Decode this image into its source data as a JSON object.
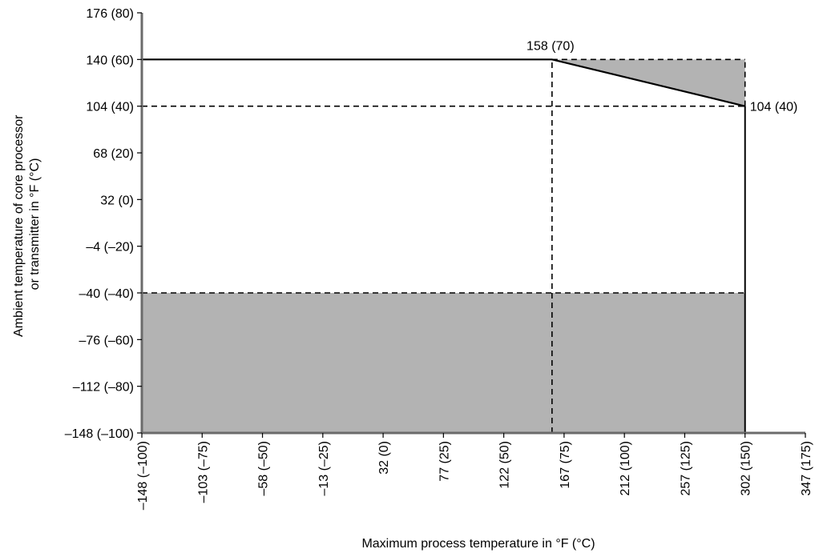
{
  "chart_data": {
    "type": "area",
    "title": "",
    "xlabel": "Maximum process temperature in °F (°C)",
    "ylabel_lines": [
      "Ambient temperature of core processor",
      "or transmitter in °F (°C)"
    ],
    "x_unit": "°C",
    "y_unit": "°C",
    "xlim": [
      -100,
      175
    ],
    "ylim": [
      -100,
      80
    ],
    "grid": false,
    "legend": "none",
    "x_ticks": [
      {
        "value": -100,
        "label": "–148 (–100)"
      },
      {
        "value": -75,
        "label": "–103 (–75)"
      },
      {
        "value": -50,
        "label": "–58 (–50)"
      },
      {
        "value": -25,
        "label": "–13 (–25)"
      },
      {
        "value": 0,
        "label": "32 (0)"
      },
      {
        "value": 25,
        "label": "77 (25)"
      },
      {
        "value": 50,
        "label": "122 (50)"
      },
      {
        "value": 75,
        "label": "167 (75)"
      },
      {
        "value": 100,
        "label": "212 (100)"
      },
      {
        "value": 125,
        "label": "257 (125)"
      },
      {
        "value": 150,
        "label": "302 (150)"
      },
      {
        "value": 175,
        "label": "347 (175)"
      }
    ],
    "y_ticks": [
      {
        "value": -100,
        "label": "–148 (–100)"
      },
      {
        "value": -80,
        "label": "–112 (–80)"
      },
      {
        "value": -60,
        "label": "–76 (–60)"
      },
      {
        "value": -40,
        "label": "–40 (–40)"
      },
      {
        "value": -20,
        "label": "–4 (–20)"
      },
      {
        "value": 0,
        "label": "32 (0)"
      },
      {
        "value": 20,
        "label": "68 (20)"
      },
      {
        "value": 40,
        "label": "104 (40)"
      },
      {
        "value": 60,
        "label": "140 (60)"
      },
      {
        "value": 80,
        "label": "176 (80)"
      }
    ],
    "boundary_line": [
      {
        "x": -100,
        "y": 60
      },
      {
        "x": 70,
        "y": 60
      },
      {
        "x": 150,
        "y": 40
      }
    ],
    "shaded_regions": [
      {
        "points": [
          [
            -100,
            -100
          ],
          [
            150,
            -100
          ],
          [
            150,
            -40
          ],
          [
            -100,
            -40
          ]
        ],
        "color": "#b3b3b3"
      },
      {
        "points": [
          [
            70,
            60
          ],
          [
            150,
            60
          ],
          [
            150,
            40
          ]
        ],
        "color": "#b3b3b3"
      }
    ],
    "dashed_lines": [
      {
        "x1": -100,
        "y1": 40,
        "x2": 150,
        "y2": 40
      },
      {
        "x1": -100,
        "y1": -40,
        "x2": 150,
        "y2": -40
      },
      {
        "x1": 70,
        "y1": 60,
        "x2": 150,
        "y2": 60
      },
      {
        "x1": 70,
        "y1": -100,
        "x2": 70,
        "y2": 60
      },
      {
        "x1": 150,
        "y1": 40,
        "x2": 150,
        "y2": 60
      }
    ],
    "solid_verticals": [
      {
        "x": -100,
        "y1": -100,
        "y2": 60
      },
      {
        "x": 150,
        "y1": -100,
        "y2": 40
      }
    ],
    "annotations": [
      {
        "text": "158 (70)",
        "x": 70,
        "y": 60,
        "position": "above"
      },
      {
        "text": "104 (40)",
        "x": 150,
        "y": 40,
        "position": "right"
      }
    ]
  }
}
